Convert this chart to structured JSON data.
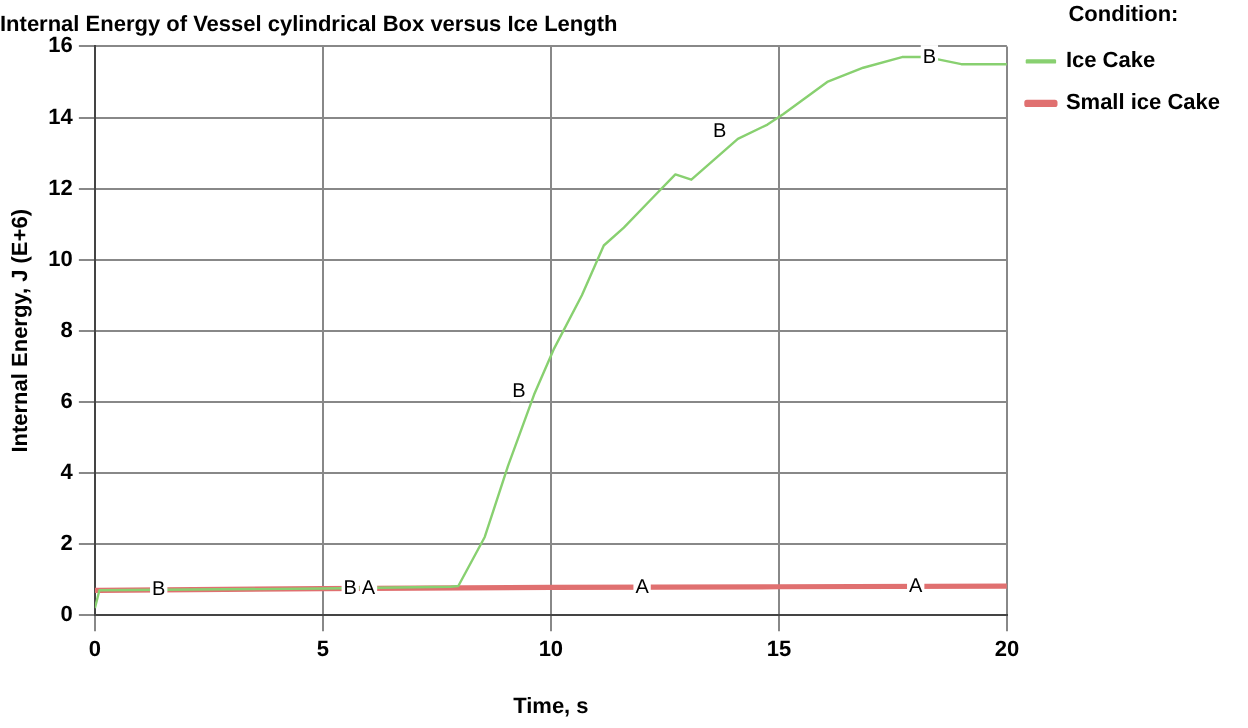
{
  "chart_data": {
    "type": "line",
    "title": "Internal Energy of Vessel cylindrical Box versus Ice Length",
    "xlabel": "Time, s",
    "ylabel": "Internal Energy, J (E+6)",
    "legend_title": "Condition:",
    "legend": "right",
    "grid": true,
    "marker": "none",
    "line_style": "solid",
    "xlim": [
      0,
      20
    ],
    "ylim": [
      0,
      16
    ],
    "xticks": [
      0,
      5,
      10,
      15,
      20
    ],
    "yticks": [
      0,
      2,
      4,
      6,
      8,
      10,
      12,
      14,
      16
    ],
    "series": [
      {
        "name": "Small ice Cake",
        "color": "#e07070",
        "x": [
          0,
          0.1,
          5,
          10,
          15,
          20
        ],
        "values": [
          0.7,
          0.7,
          0.75,
          0.78,
          0.8,
          0.82
        ]
      },
      {
        "name": "Ice Cake",
        "color": "#88d070",
        "x": [
          0,
          0.1,
          5,
          7.8,
          7.97,
          8.55,
          9.06,
          9.63,
          10.07,
          10.68,
          11.16,
          11.6,
          12.2,
          12.73,
          13.08,
          14.1,
          14.75,
          15.1,
          16.06,
          16.85,
          17.7,
          18.25,
          19.0,
          20
        ],
        "values": [
          0.2,
          0.7,
          0.75,
          0.8,
          0.82,
          2.2,
          4.2,
          6.2,
          7.5,
          9.0,
          10.4,
          10.9,
          11.7,
          12.4,
          12.25,
          13.4,
          13.8,
          14.1,
          15.0,
          15.4,
          15.7,
          15.7,
          15.5,
          15.5
        ]
      }
    ],
    "annotations": [
      {
        "text": "B",
        "x": 1.4,
        "y": 0.72
      },
      {
        "text": "B",
        "x": 5.6,
        "y": 0.76
      },
      {
        "text": "A",
        "x": 6.0,
        "y": 0.76
      },
      {
        "text": "B",
        "x": 9.3,
        "y": 6.3
      },
      {
        "text": "A",
        "x": 12,
        "y": 0.78
      },
      {
        "text": "B",
        "x": 13.7,
        "y": 13.6
      },
      {
        "text": "A",
        "x": 18,
        "y": 0.82
      },
      {
        "text": "B",
        "x": 18.3,
        "y": 15.7
      }
    ]
  }
}
